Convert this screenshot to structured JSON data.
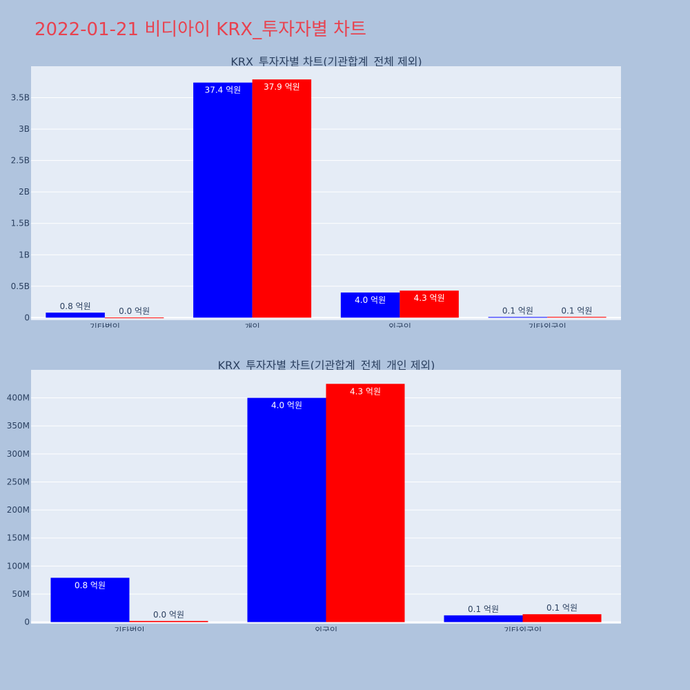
{
  "page": {
    "title": "2022-01-21 비디아이 KRX_투자자별 차트",
    "background": "#b0c4de",
    "title_color": "#e8424f"
  },
  "colors": {
    "plot_bg": "#e5ecf6",
    "series_blue": "#0000ff",
    "series_red": "#ff0000",
    "grid": "#ffffff",
    "text": "#2a3f5f"
  },
  "chart_data": [
    {
      "type": "bar",
      "title": "KRX_투자자별 차트(기관합계_전체 제외)",
      "categories": [
        "기타법인",
        "개인",
        "외국인",
        "기타외국인"
      ],
      "series": [
        {
          "color": "#0000ff",
          "values": [
            80000000,
            3740000000,
            400000000,
            10000000
          ],
          "labels": [
            "0.8 억원",
            "37.4 억원",
            "4.0 억원",
            "0.1 억원"
          ]
        },
        {
          "color": "#ff0000",
          "values": [
            2000000,
            3790000000,
            430000000,
            12000000
          ],
          "labels": [
            "0.0 억원",
            "37.9 억원",
            "4.3 억원",
            "0.1 억원"
          ]
        }
      ],
      "yticks": [
        0,
        500000000,
        1000000000,
        1500000000,
        2000000000,
        2500000000,
        3000000000,
        3500000000
      ],
      "ytick_labels": [
        "0",
        "0.5B",
        "1B",
        "1.5B",
        "2B",
        "2.5B",
        "3B",
        "3.5B"
      ],
      "ylim": [
        -40000000,
        4000000000
      ],
      "grid": true
    },
    {
      "type": "bar",
      "title": "KRX_투자자별 차트(기관합계_전체_개인 제외)",
      "categories": [
        "기타법인",
        "외국인",
        "기타외국인"
      ],
      "series": [
        {
          "color": "#0000ff",
          "values": [
            79000000,
            400000000,
            12000000
          ],
          "labels": [
            "0.8 억원",
            "4.0 억원",
            "0.1 억원"
          ]
        },
        {
          "color": "#ff0000",
          "values": [
            2000000,
            425000000,
            14000000
          ],
          "labels": [
            "0.0 억원",
            "4.3 억원",
            "0.1 억원"
          ]
        }
      ],
      "yticks": [
        0,
        50000000,
        100000000,
        150000000,
        200000000,
        250000000,
        300000000,
        350000000,
        400000000
      ],
      "ytick_labels": [
        "0",
        "50M",
        "100M",
        "150M",
        "200M",
        "250M",
        "300M",
        "350M",
        "400M"
      ],
      "ylim": [
        -3000000,
        450000000
      ],
      "grid": true
    }
  ]
}
